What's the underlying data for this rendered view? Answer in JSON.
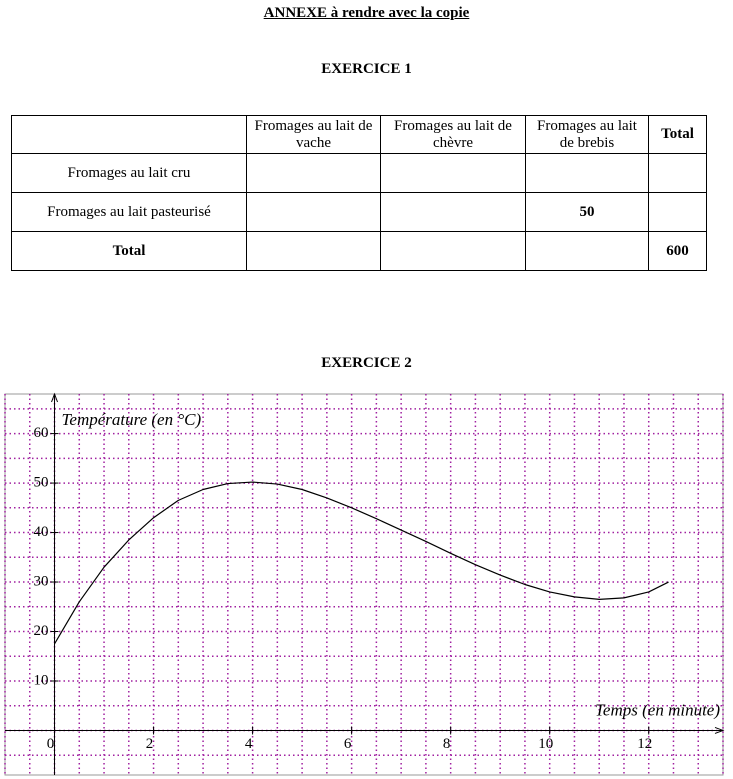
{
  "header": {
    "title": "ANNEXE à rendre avec la copie"
  },
  "exercise1": {
    "title": "EXERCICE 1",
    "table": {
      "header": [
        null,
        "Fromages au lait de vache",
        "Fromages au lait de chèvre",
        "Fromages au lait de brebis",
        "Total"
      ],
      "rows": [
        [
          "Fromages au lait cru",
          null,
          null,
          null,
          null
        ],
        [
          "Fromages au lait pasteurisé",
          null,
          null,
          50,
          null
        ],
        [
          "Total",
          null,
          null,
          null,
          600
        ]
      ]
    }
  },
  "exercise2": {
    "title": "EXERCICE 2"
  },
  "chart_data": {
    "type": "line",
    "y_label": "Température (en °C)",
    "x_label": "Temps (en minute)",
    "x": [
      0,
      0.5,
      1,
      1.5,
      2,
      2.5,
      3,
      3.5,
      4,
      4.5,
      5,
      5.5,
      6,
      6.5,
      7,
      7.5,
      8,
      8.5,
      9,
      9.5,
      10,
      10.5,
      11,
      11.5,
      12,
      12.4
    ],
    "values": [
      17.5,
      26,
      33,
      38.5,
      43,
      46.5,
      48.7,
      49.9,
      50.2,
      49.8,
      48.7,
      47,
      45,
      42.8,
      40.5,
      38.2,
      35.8,
      33.5,
      31.4,
      29.5,
      28,
      27,
      26.5,
      26.8,
      28,
      30
    ],
    "color": "#000000",
    "xlim": [
      -1,
      13.5
    ],
    "ylim": [
      -9,
      68
    ],
    "xticks": [
      0,
      2,
      4,
      6,
      8,
      10,
      12
    ],
    "yticks": [
      10,
      20,
      30,
      40,
      50,
      60
    ],
    "grid": true,
    "grid_color": "#a020a0"
  }
}
